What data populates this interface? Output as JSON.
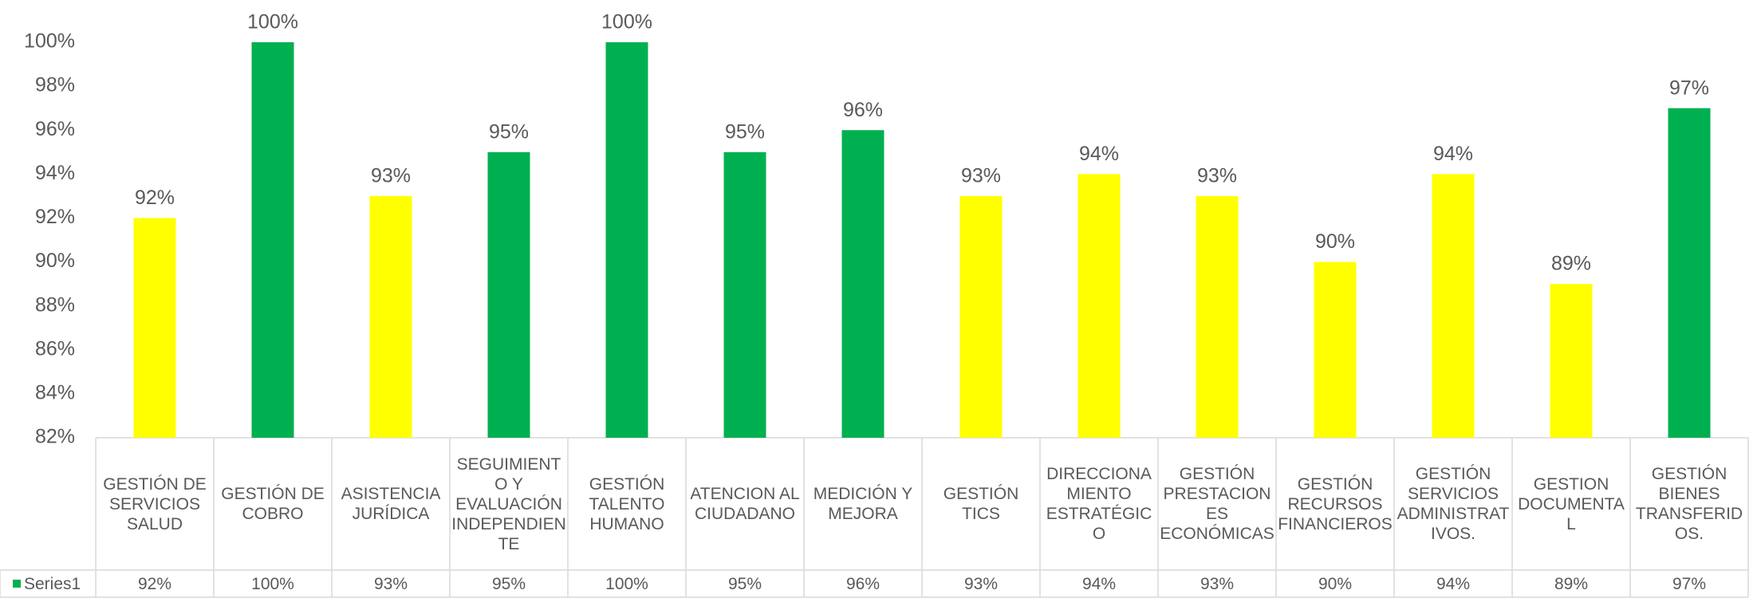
{
  "chart_data": {
    "type": "bar",
    "categories": [
      "GESTIÓN DE SERVICIOS SALUD",
      "GESTIÓN DE COBRO",
      "ASISTENCIA JURÍDICA",
      "SEGUIMIENTO Y EVALUACIÓN INDEPENDIENTE",
      "GESTIÓN TALENTO HUMANO",
      "ATENCION AL CIUDADANO",
      "MEDICIÓN Y MEJORA",
      "GESTIÓN TICS",
      "DIRECCIONAMIENTO ESTRATÉGICO",
      "GESTIÓN PRESTACIONES ECONÓMICAS",
      "GESTIÓN RECURSOS FINANCIEROS",
      "GESTIÓN SERVICIOS ADMINISTRATIVOS.",
      "GESTION DOCUMENTAL",
      "GESTIÓN BIENES TRANSFERIDOS."
    ],
    "series": [
      {
        "name": "Series1",
        "color": "#00b050",
        "colors": [
          "#ffff00",
          "#00b050",
          "#ffff00",
          "#00b050",
          "#00b050",
          "#00b050",
          "#00b050",
          "#ffff00",
          "#ffff00",
          "#ffff00",
          "#ffff00",
          "#ffff00",
          "#ffff00",
          "#00b050"
        ],
        "values": [
          92,
          100,
          93,
          95,
          100,
          95,
          96,
          93,
          94,
          93,
          90,
          94,
          89,
          97
        ],
        "value_labels": [
          "92%",
          "100%",
          "93%",
          "95%",
          "100%",
          "95%",
          "96%",
          "93%",
          "94%",
          "93%",
          "90%",
          "94%",
          "89%",
          "97%"
        ]
      }
    ],
    "ylim": [
      82,
      100
    ],
    "yticks": [
      {
        "value": 82,
        "label": "82%"
      },
      {
        "value": 84,
        "label": "84%"
      },
      {
        "value": 86,
        "label": "86%"
      },
      {
        "value": 88,
        "label": "88%"
      },
      {
        "value": 90,
        "label": "90%"
      },
      {
        "value": 92,
        "label": "92%"
      },
      {
        "value": 94,
        "label": "94%"
      },
      {
        "value": 96,
        "label": "96%"
      },
      {
        "value": 98,
        "label": "98%"
      },
      {
        "value": 100,
        "label": "100%"
      }
    ],
    "grid": false
  }
}
